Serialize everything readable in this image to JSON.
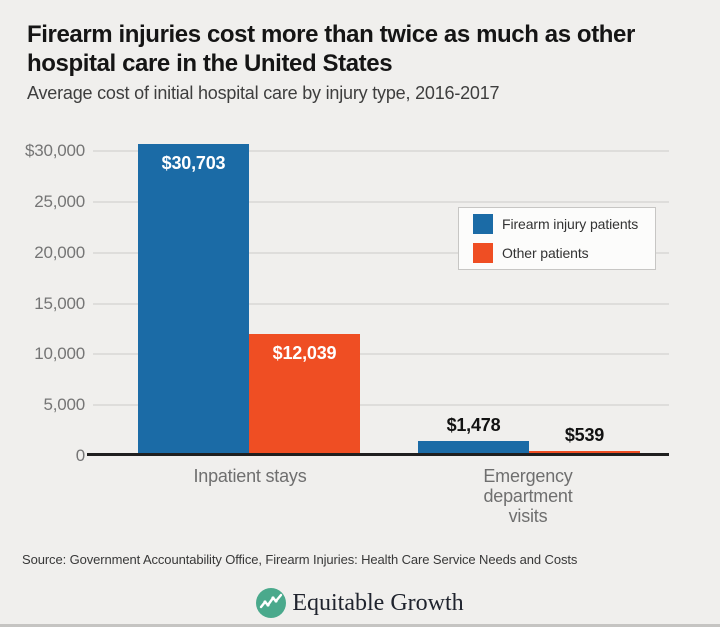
{
  "chart_data": {
    "type": "bar",
    "title": "Firearm injuries cost more than twice as much as other hospital care in the United States",
    "subtitle": "Average cost of initial hospital care by injury type, 2016-2017",
    "categories": [
      "Inpatient stays",
      "Emergency department visits"
    ],
    "series": [
      {
        "name": "Firearm injury patients",
        "color": "#1b6ba6",
        "values": [
          30703,
          1478
        ],
        "value_labels": [
          "$30,703",
          "$1,478"
        ]
      },
      {
        "name": "Other patients",
        "color": "#ef4e23",
        "values": [
          12039,
          539
        ],
        "value_labels": [
          "$12,039",
          "$539"
        ]
      }
    ],
    "ylim": [
      0,
      30703
    ],
    "yticks": [
      {
        "v": 0,
        "label": "0"
      },
      {
        "v": 5000,
        "label": "5,000"
      },
      {
        "v": 10000,
        "label": "10,000"
      },
      {
        "v": 15000,
        "label": "15,000"
      },
      {
        "v": 20000,
        "label": "20,000"
      },
      {
        "v": 25000,
        "label": "25,000"
      },
      {
        "v": 30000,
        "label": "$30,000"
      }
    ],
    "grid": true,
    "legend_position": "upper right"
  },
  "footer": {
    "source": "Source: Government Accountability Office, Firearm Injuries: Health Care Service Needs and Costs",
    "logo_text": "Equitable Growth"
  },
  "colors": {
    "background": "#f0efed",
    "firearm_blue": "#1b6ba6",
    "other_orange": "#ef4e23",
    "logo_green": "#4aa98c",
    "axis": "#1f1f1f",
    "gridline": "#dedddb"
  }
}
